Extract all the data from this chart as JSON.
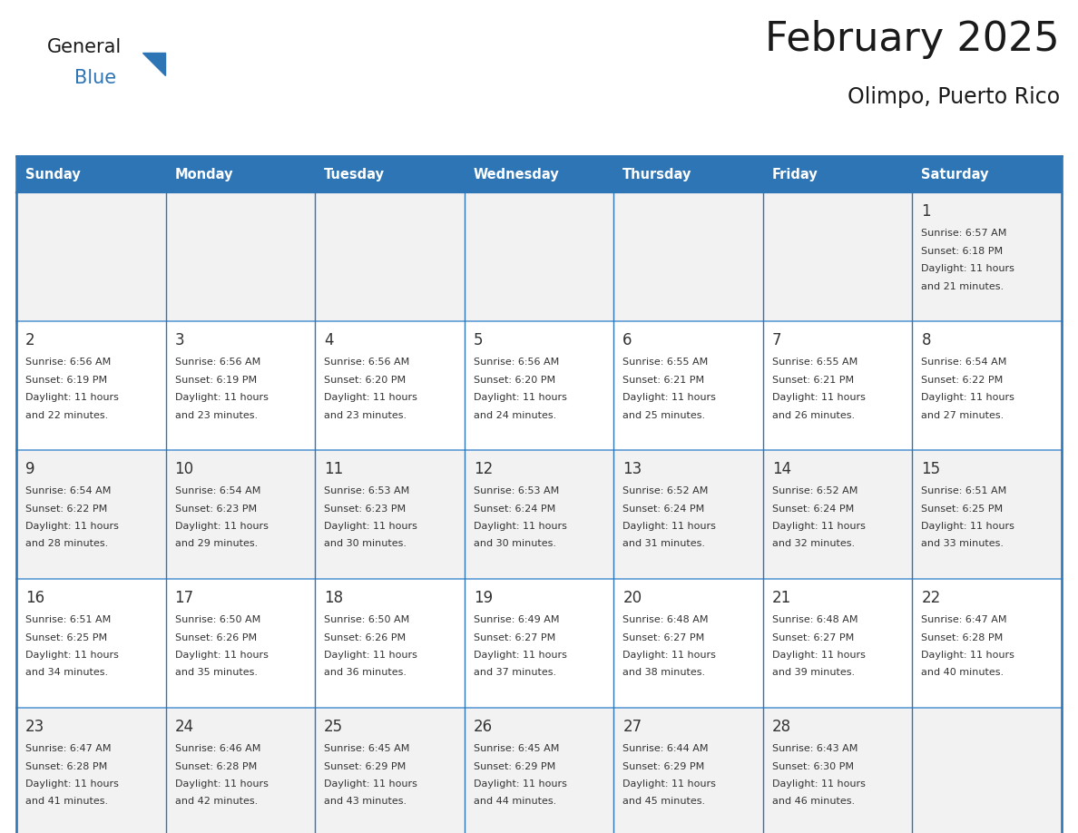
{
  "title": "February 2025",
  "subtitle": "Olimpo, Puerto Rico",
  "header_bg": "#2E75B6",
  "header_text_color": "#FFFFFF",
  "day_names": [
    "Sunday",
    "Monday",
    "Tuesday",
    "Wednesday",
    "Thursday",
    "Friday",
    "Saturday"
  ],
  "cell_bg_odd": "#F2F2F2",
  "cell_bg_even": "#FFFFFF",
  "border_color_light": "#5B9BD5",
  "border_color_outer": "#2E75B6",
  "text_color": "#333333",
  "day_num_color": "#333333",
  "logo_general_color": "#1a1a1a",
  "logo_blue_color": "#2E75B6",
  "calendar": [
    [
      null,
      null,
      null,
      null,
      null,
      null,
      {
        "day": 1,
        "sunrise": "6:57 AM",
        "sunset": "6:18 PM",
        "daylight": "11 hours and 21 minutes."
      }
    ],
    [
      {
        "day": 2,
        "sunrise": "6:56 AM",
        "sunset": "6:19 PM",
        "daylight": "11 hours and 22 minutes."
      },
      {
        "day": 3,
        "sunrise": "6:56 AM",
        "sunset": "6:19 PM",
        "daylight": "11 hours and 23 minutes."
      },
      {
        "day": 4,
        "sunrise": "6:56 AM",
        "sunset": "6:20 PM",
        "daylight": "11 hours and 23 minutes."
      },
      {
        "day": 5,
        "sunrise": "6:56 AM",
        "sunset": "6:20 PM",
        "daylight": "11 hours and 24 minutes."
      },
      {
        "day": 6,
        "sunrise": "6:55 AM",
        "sunset": "6:21 PM",
        "daylight": "11 hours and 25 minutes."
      },
      {
        "day": 7,
        "sunrise": "6:55 AM",
        "sunset": "6:21 PM",
        "daylight": "11 hours and 26 minutes."
      },
      {
        "day": 8,
        "sunrise": "6:54 AM",
        "sunset": "6:22 PM",
        "daylight": "11 hours and 27 minutes."
      }
    ],
    [
      {
        "day": 9,
        "sunrise": "6:54 AM",
        "sunset": "6:22 PM",
        "daylight": "11 hours and 28 minutes."
      },
      {
        "day": 10,
        "sunrise": "6:54 AM",
        "sunset": "6:23 PM",
        "daylight": "11 hours and 29 minutes."
      },
      {
        "day": 11,
        "sunrise": "6:53 AM",
        "sunset": "6:23 PM",
        "daylight": "11 hours and 30 minutes."
      },
      {
        "day": 12,
        "sunrise": "6:53 AM",
        "sunset": "6:24 PM",
        "daylight": "11 hours and 30 minutes."
      },
      {
        "day": 13,
        "sunrise": "6:52 AM",
        "sunset": "6:24 PM",
        "daylight": "11 hours and 31 minutes."
      },
      {
        "day": 14,
        "sunrise": "6:52 AM",
        "sunset": "6:24 PM",
        "daylight": "11 hours and 32 minutes."
      },
      {
        "day": 15,
        "sunrise": "6:51 AM",
        "sunset": "6:25 PM",
        "daylight": "11 hours and 33 minutes."
      }
    ],
    [
      {
        "day": 16,
        "sunrise": "6:51 AM",
        "sunset": "6:25 PM",
        "daylight": "11 hours and 34 minutes."
      },
      {
        "day": 17,
        "sunrise": "6:50 AM",
        "sunset": "6:26 PM",
        "daylight": "11 hours and 35 minutes."
      },
      {
        "day": 18,
        "sunrise": "6:50 AM",
        "sunset": "6:26 PM",
        "daylight": "11 hours and 36 minutes."
      },
      {
        "day": 19,
        "sunrise": "6:49 AM",
        "sunset": "6:27 PM",
        "daylight": "11 hours and 37 minutes."
      },
      {
        "day": 20,
        "sunrise": "6:48 AM",
        "sunset": "6:27 PM",
        "daylight": "11 hours and 38 minutes."
      },
      {
        "day": 21,
        "sunrise": "6:48 AM",
        "sunset": "6:27 PM",
        "daylight": "11 hours and 39 minutes."
      },
      {
        "day": 22,
        "sunrise": "6:47 AM",
        "sunset": "6:28 PM",
        "daylight": "11 hours and 40 minutes."
      }
    ],
    [
      {
        "day": 23,
        "sunrise": "6:47 AM",
        "sunset": "6:28 PM",
        "daylight": "11 hours and 41 minutes."
      },
      {
        "day": 24,
        "sunrise": "6:46 AM",
        "sunset": "6:28 PM",
        "daylight": "11 hours and 42 minutes."
      },
      {
        "day": 25,
        "sunrise": "6:45 AM",
        "sunset": "6:29 PM",
        "daylight": "11 hours and 43 minutes."
      },
      {
        "day": 26,
        "sunrise": "6:45 AM",
        "sunset": "6:29 PM",
        "daylight": "11 hours and 44 minutes."
      },
      {
        "day": 27,
        "sunrise": "6:44 AM",
        "sunset": "6:29 PM",
        "daylight": "11 hours and 45 minutes."
      },
      {
        "day": 28,
        "sunrise": "6:43 AM",
        "sunset": "6:30 PM",
        "daylight": "11 hours and 46 minutes."
      },
      null
    ]
  ],
  "fig_width": 11.88,
  "fig_height": 9.18
}
